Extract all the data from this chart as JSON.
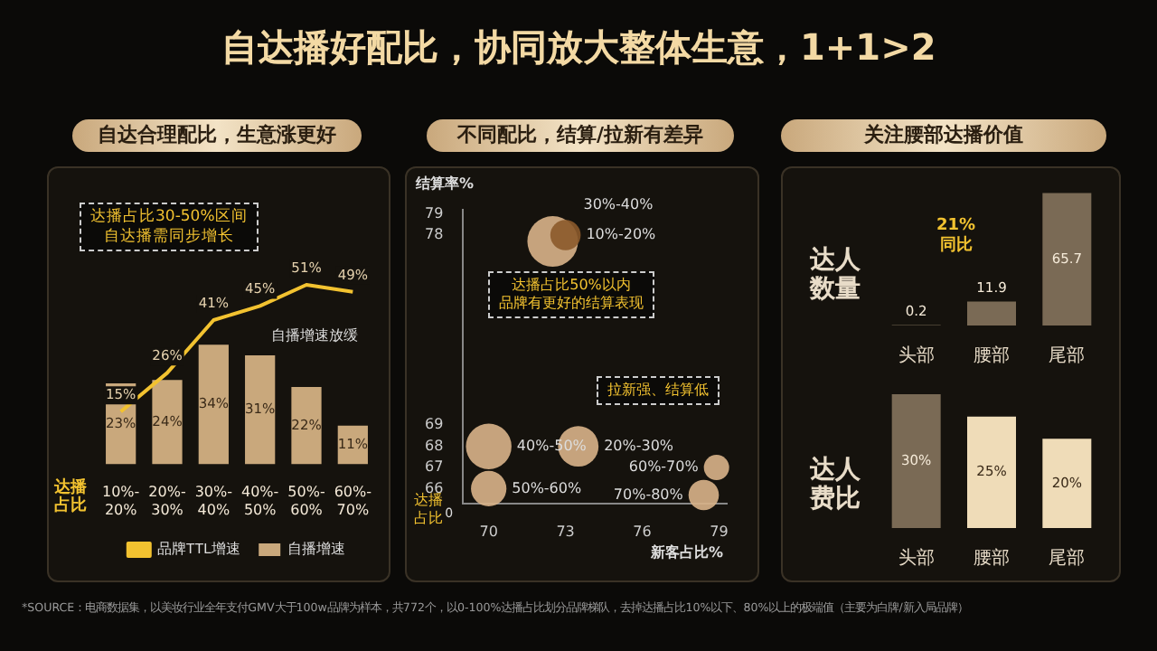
{
  "chart_data": [
    {
      "type": "bar",
      "title": "自达合理配比，生意涨更好",
      "xlabel": "达播占比",
      "categories": [
        "10%-20%",
        "20%-30%",
        "30%-40%",
        "40%-50%",
        "50%-60%",
        "60%-70%"
      ],
      "series": [
        {
          "name": "品牌TTL增速",
          "type": "line",
          "color": "#f2c230",
          "values": [
            15,
            26,
            41,
            45,
            51,
            49
          ],
          "value_labels": [
            "15%",
            "26%",
            "41%",
            "45%",
            "51%",
            "49%"
          ]
        },
        {
          "name": "自播增速",
          "type": "bar",
          "color": "#c9a87c",
          "values": [
            23,
            24,
            34,
            31,
            22,
            11
          ],
          "value_labels": [
            "23%",
            "24%",
            "34%",
            "31%",
            "22%",
            "11%"
          ]
        }
      ],
      "marker": "none",
      "legend": "bottom",
      "tick_labels": "x",
      "annotations": [
        "自达播好配比，协同放大整体生意，1+1>2",
        "*SOURCE：电商数据集，以美妆行业全年支付GMV大于100w品牌为样本，共772个，以0-100%达播占比划分品牌梯队，去掉达播占比10%以下、80%以上的极端值（主要为白牌/新入局品牌）",
        "达播占比30-50%区间",
        "自达播需同步增长",
        "自播增速放缓"
      ]
    },
    {
      "type": "bubble",
      "title": "不同配比，结算/拉新有差异",
      "xlabel": "新客占比%",
      "ylabel": "结算率%",
      "xlim": [
        69,
        79.3
      ],
      "xticks": [
        70,
        73,
        76,
        79
      ],
      "ylim": [
        65.3,
        79.2
      ],
      "yticks": [
        66,
        67,
        68,
        69,
        78,
        79
      ],
      "tick_labels": "xy",
      "series": [
        {
          "name": "10%-20%",
          "color": "#8b5a2b",
          "x": [
            73
          ],
          "values": [
            78
          ],
          "sizes": [
            0.36
          ]
        },
        {
          "name": "30%-40%",
          "color": "#d9b48a",
          "x": [
            72.5
          ],
          "values": [
            77.7
          ],
          "sizes": [
            1
          ]
        },
        {
          "name": "40%-50%",
          "color": "#d9b48a",
          "x": [
            70
          ],
          "values": [
            68
          ],
          "sizes": [
            0.81
          ]
        },
        {
          "name": "20%-30%",
          "color": "#d9b48a",
          "x": [
            73.5
          ],
          "values": [
            68
          ],
          "sizes": [
            0.64
          ]
        },
        {
          "name": "60%-70%",
          "color": "#d9b48a",
          "x": [
            78.9
          ],
          "values": [
            67
          ],
          "sizes": [
            0.25
          ]
        },
        {
          "name": "50%-60%",
          "color": "#d9b48a",
          "x": [
            70
          ],
          "values": [
            66
          ],
          "sizes": [
            0.49
          ]
        },
        {
          "name": "70%-80%",
          "color": "#d9b48a",
          "x": [
            78.4
          ],
          "values": [
            65.7
          ],
          "sizes": [
            0.36
          ]
        }
      ],
      "annotations": [
        "达播占比50%以内",
        "品牌有更好的结算表现",
        "拉新强、结算低",
        "达播占比",
        "0"
      ]
    },
    {
      "type": "bar",
      "title": "关注腰部达播价值",
      "ylabel": "达人数量",
      "categories": [
        "头部",
        "腰部",
        "尾部"
      ],
      "values": [
        0.2,
        11.9,
        65.7
      ],
      "colors": [
        "#7a6a55",
        "#7a6a55",
        "#7a6a55"
      ],
      "data_labels": true,
      "tick_labels": "x",
      "annotations": [
        "21%\n同比"
      ]
    },
    {
      "type": "bar",
      "ylabel": "达人费比",
      "categories": [
        "头部",
        "腰部",
        "尾部"
      ],
      "values": [
        30,
        25,
        20
      ],
      "value_labels": [
        "30%",
        "25%",
        "20%"
      ],
      "colors": [
        "#7a6a55",
        "#efdcb8",
        "#efdcb8"
      ],
      "tick_labels": "x"
    }
  ]
}
